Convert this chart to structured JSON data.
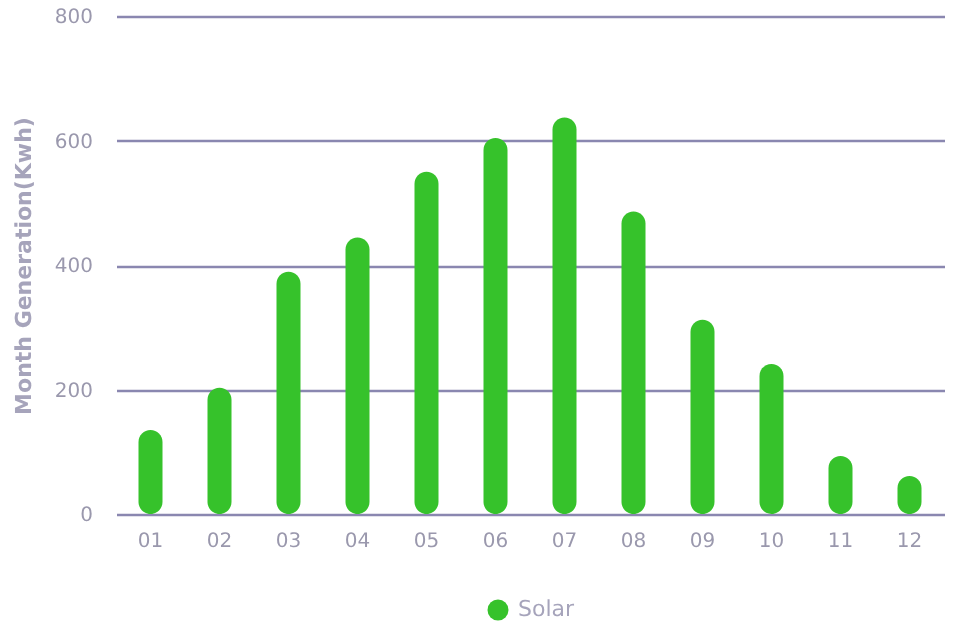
{
  "chart_data": {
    "type": "bar",
    "ylabel": "Month Generation(Kwh)",
    "categories": [
      "01",
      "02",
      "03",
      "04",
      "05",
      "06",
      "07",
      "08",
      "09",
      "10",
      "11",
      "12"
    ],
    "series": [
      {
        "name": "Solar",
        "color": "#36c22b",
        "values": [
          135,
          203,
          389,
          444,
          550,
          604,
          637,
          486,
          312,
          241,
          93,
          61
        ]
      }
    ],
    "ylim": [
      0,
      800
    ],
    "yticks": [
      0,
      200,
      400,
      600,
      800
    ],
    "grid": "y",
    "legend": "bottom"
  }
}
